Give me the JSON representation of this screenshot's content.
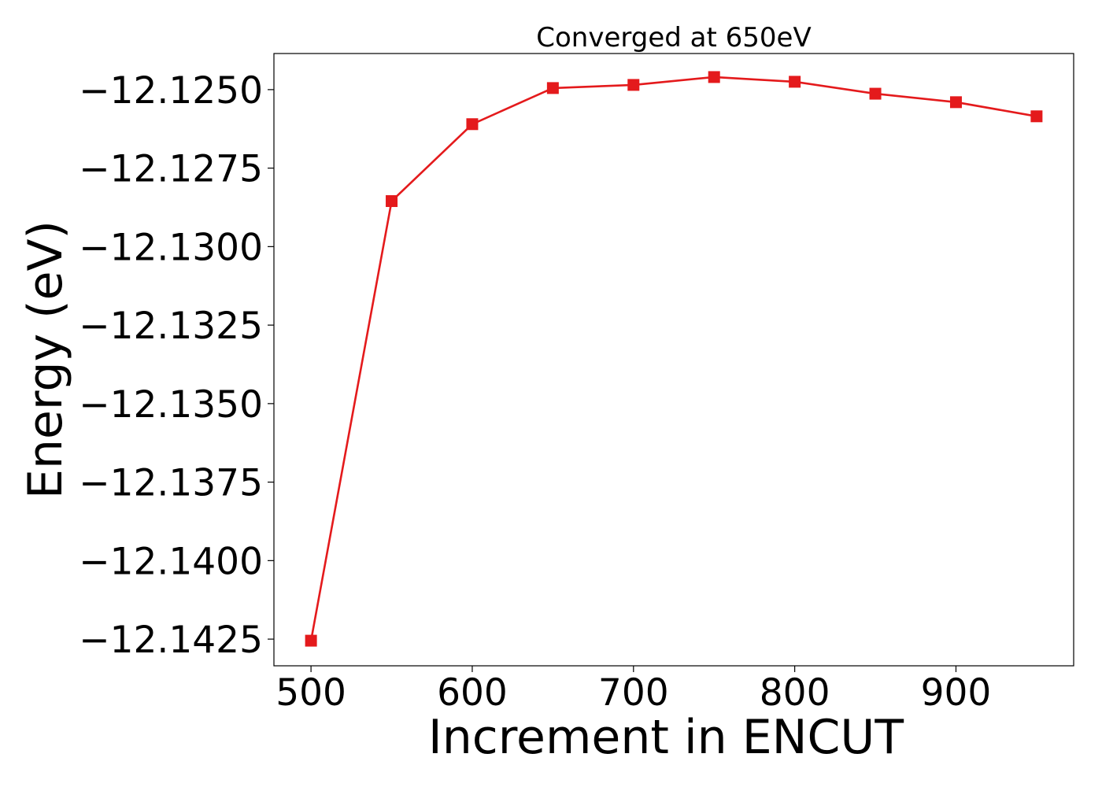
{
  "chart_data": {
    "type": "line",
    "title": "Converged at 650eV",
    "xlabel": "Increment in ENCUT",
    "ylabel": "Energy (eV)",
    "xlim": [
      477,
      973
    ],
    "ylim": [
      -12.14335,
      -12.12385
    ],
    "xticks": [
      500,
      600,
      700,
      800,
      900
    ],
    "xtick_labels": [
      "500",
      "600",
      "700",
      "800",
      "900"
    ],
    "yticks": [
      -12.125,
      -12.1275,
      -12.13,
      -12.1325,
      -12.135,
      -12.1375,
      -12.14,
      -12.1425
    ],
    "ytick_labels": [
      "−12.1250",
      "−12.1275",
      "−12.1300",
      "−12.1325",
      "−12.1350",
      "−12.1375",
      "−12.1400",
      "−12.1425"
    ],
    "grid": false,
    "series": [
      {
        "color": "#e41a1c",
        "marker": "square",
        "x": [
          500,
          550,
          600,
          650,
          700,
          750,
          800,
          850,
          900,
          950
        ],
        "y": [
          -12.14255,
          -12.12855,
          -12.1261,
          -12.12495,
          -12.12485,
          -12.1246,
          -12.12475,
          -12.12513,
          -12.1254,
          -12.12585
        ]
      }
    ]
  }
}
